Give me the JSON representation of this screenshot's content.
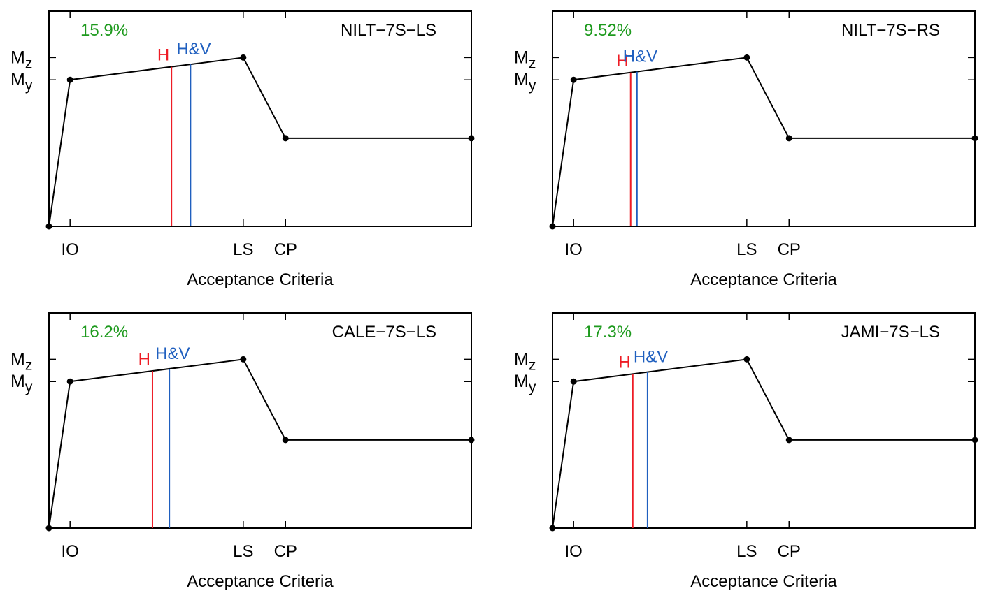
{
  "chart_data": [
    {
      "type": "line",
      "panel_label": "NILT−7S−LS",
      "percent_label": "15.9%",
      "xlabel": "Acceptance Criteria",
      "x_ticks": [
        "IO",
        "LS",
        "CP"
      ],
      "y_ticks": [
        {
          "main": "M",
          "sub": "z"
        },
        {
          "main": "M",
          "sub": "y"
        }
      ],
      "backbone": [
        [
          0,
          0
        ],
        [
          0.05,
          0.79
        ],
        [
          0.46,
          0.91
        ],
        [
          0.56,
          0.475
        ],
        [
          1.0,
          0.475
        ]
      ],
      "markers": [
        {
          "label": "H",
          "x": 0.29,
          "color": "#ee1c25"
        },
        {
          "label": "H&V",
          "x": 0.335,
          "color": "#1f5fbf"
        }
      ],
      "xlim": [
        0,
        1
      ],
      "ylim": [
        0,
        1.16
      ],
      "grid": false
    },
    {
      "type": "line",
      "panel_label": "NILT−7S−RS",
      "percent_label": "9.52%",
      "xlabel": "Acceptance Criteria",
      "x_ticks": [
        "IO",
        "LS",
        "CP"
      ],
      "y_ticks": [
        {
          "main": "M",
          "sub": "z"
        },
        {
          "main": "M",
          "sub": "y"
        }
      ],
      "backbone": [
        [
          0,
          0
        ],
        [
          0.05,
          0.79
        ],
        [
          0.46,
          0.91
        ],
        [
          0.56,
          0.475
        ],
        [
          1.0,
          0.475
        ]
      ],
      "markers": [
        {
          "label": "H",
          "x": 0.185,
          "color": "#ee1c25"
        },
        {
          "label": "H&V",
          "x": 0.2,
          "color": "#1f5fbf"
        }
      ],
      "xlim": [
        0,
        1
      ],
      "ylim": [
        0,
        1.16
      ],
      "grid": false
    },
    {
      "type": "line",
      "panel_label": "CALE−7S−LS",
      "percent_label": "16.2%",
      "xlabel": "Acceptance Criteria",
      "x_ticks": [
        "IO",
        "LS",
        "CP"
      ],
      "y_ticks": [
        {
          "main": "M",
          "sub": "z"
        },
        {
          "main": "M",
          "sub": "y"
        }
      ],
      "backbone": [
        [
          0,
          0
        ],
        [
          0.05,
          0.79
        ],
        [
          0.46,
          0.91
        ],
        [
          0.56,
          0.475
        ],
        [
          1.0,
          0.475
        ]
      ],
      "markers": [
        {
          "label": "H",
          "x": 0.245,
          "color": "#ee1c25"
        },
        {
          "label": "H&V",
          "x": 0.285,
          "color": "#1f5fbf"
        }
      ],
      "xlim": [
        0,
        1
      ],
      "ylim": [
        0,
        1.16
      ],
      "grid": false
    },
    {
      "type": "line",
      "panel_label": "JAMI−7S−LS",
      "percent_label": "17.3%",
      "xlabel": "Acceptance Criteria",
      "x_ticks": [
        "IO",
        "LS",
        "CP"
      ],
      "y_ticks": [
        {
          "main": "M",
          "sub": "z"
        },
        {
          "main": "M",
          "sub": "y"
        }
      ],
      "backbone": [
        [
          0,
          0
        ],
        [
          0.05,
          0.79
        ],
        [
          0.46,
          0.91
        ],
        [
          0.56,
          0.475
        ],
        [
          1.0,
          0.475
        ]
      ],
      "markers": [
        {
          "label": "H",
          "x": 0.19,
          "color": "#ee1c25"
        },
        {
          "label": "H&V",
          "x": 0.225,
          "color": "#1f5fbf"
        }
      ],
      "xlim": [
        0,
        1
      ],
      "ylim": [
        0,
        1.16
      ],
      "grid": false
    }
  ],
  "colors": {
    "axis": "#000000",
    "percent": "#1e9a1e",
    "H": "#ee1c25",
    "HV": "#1f5fbf"
  }
}
